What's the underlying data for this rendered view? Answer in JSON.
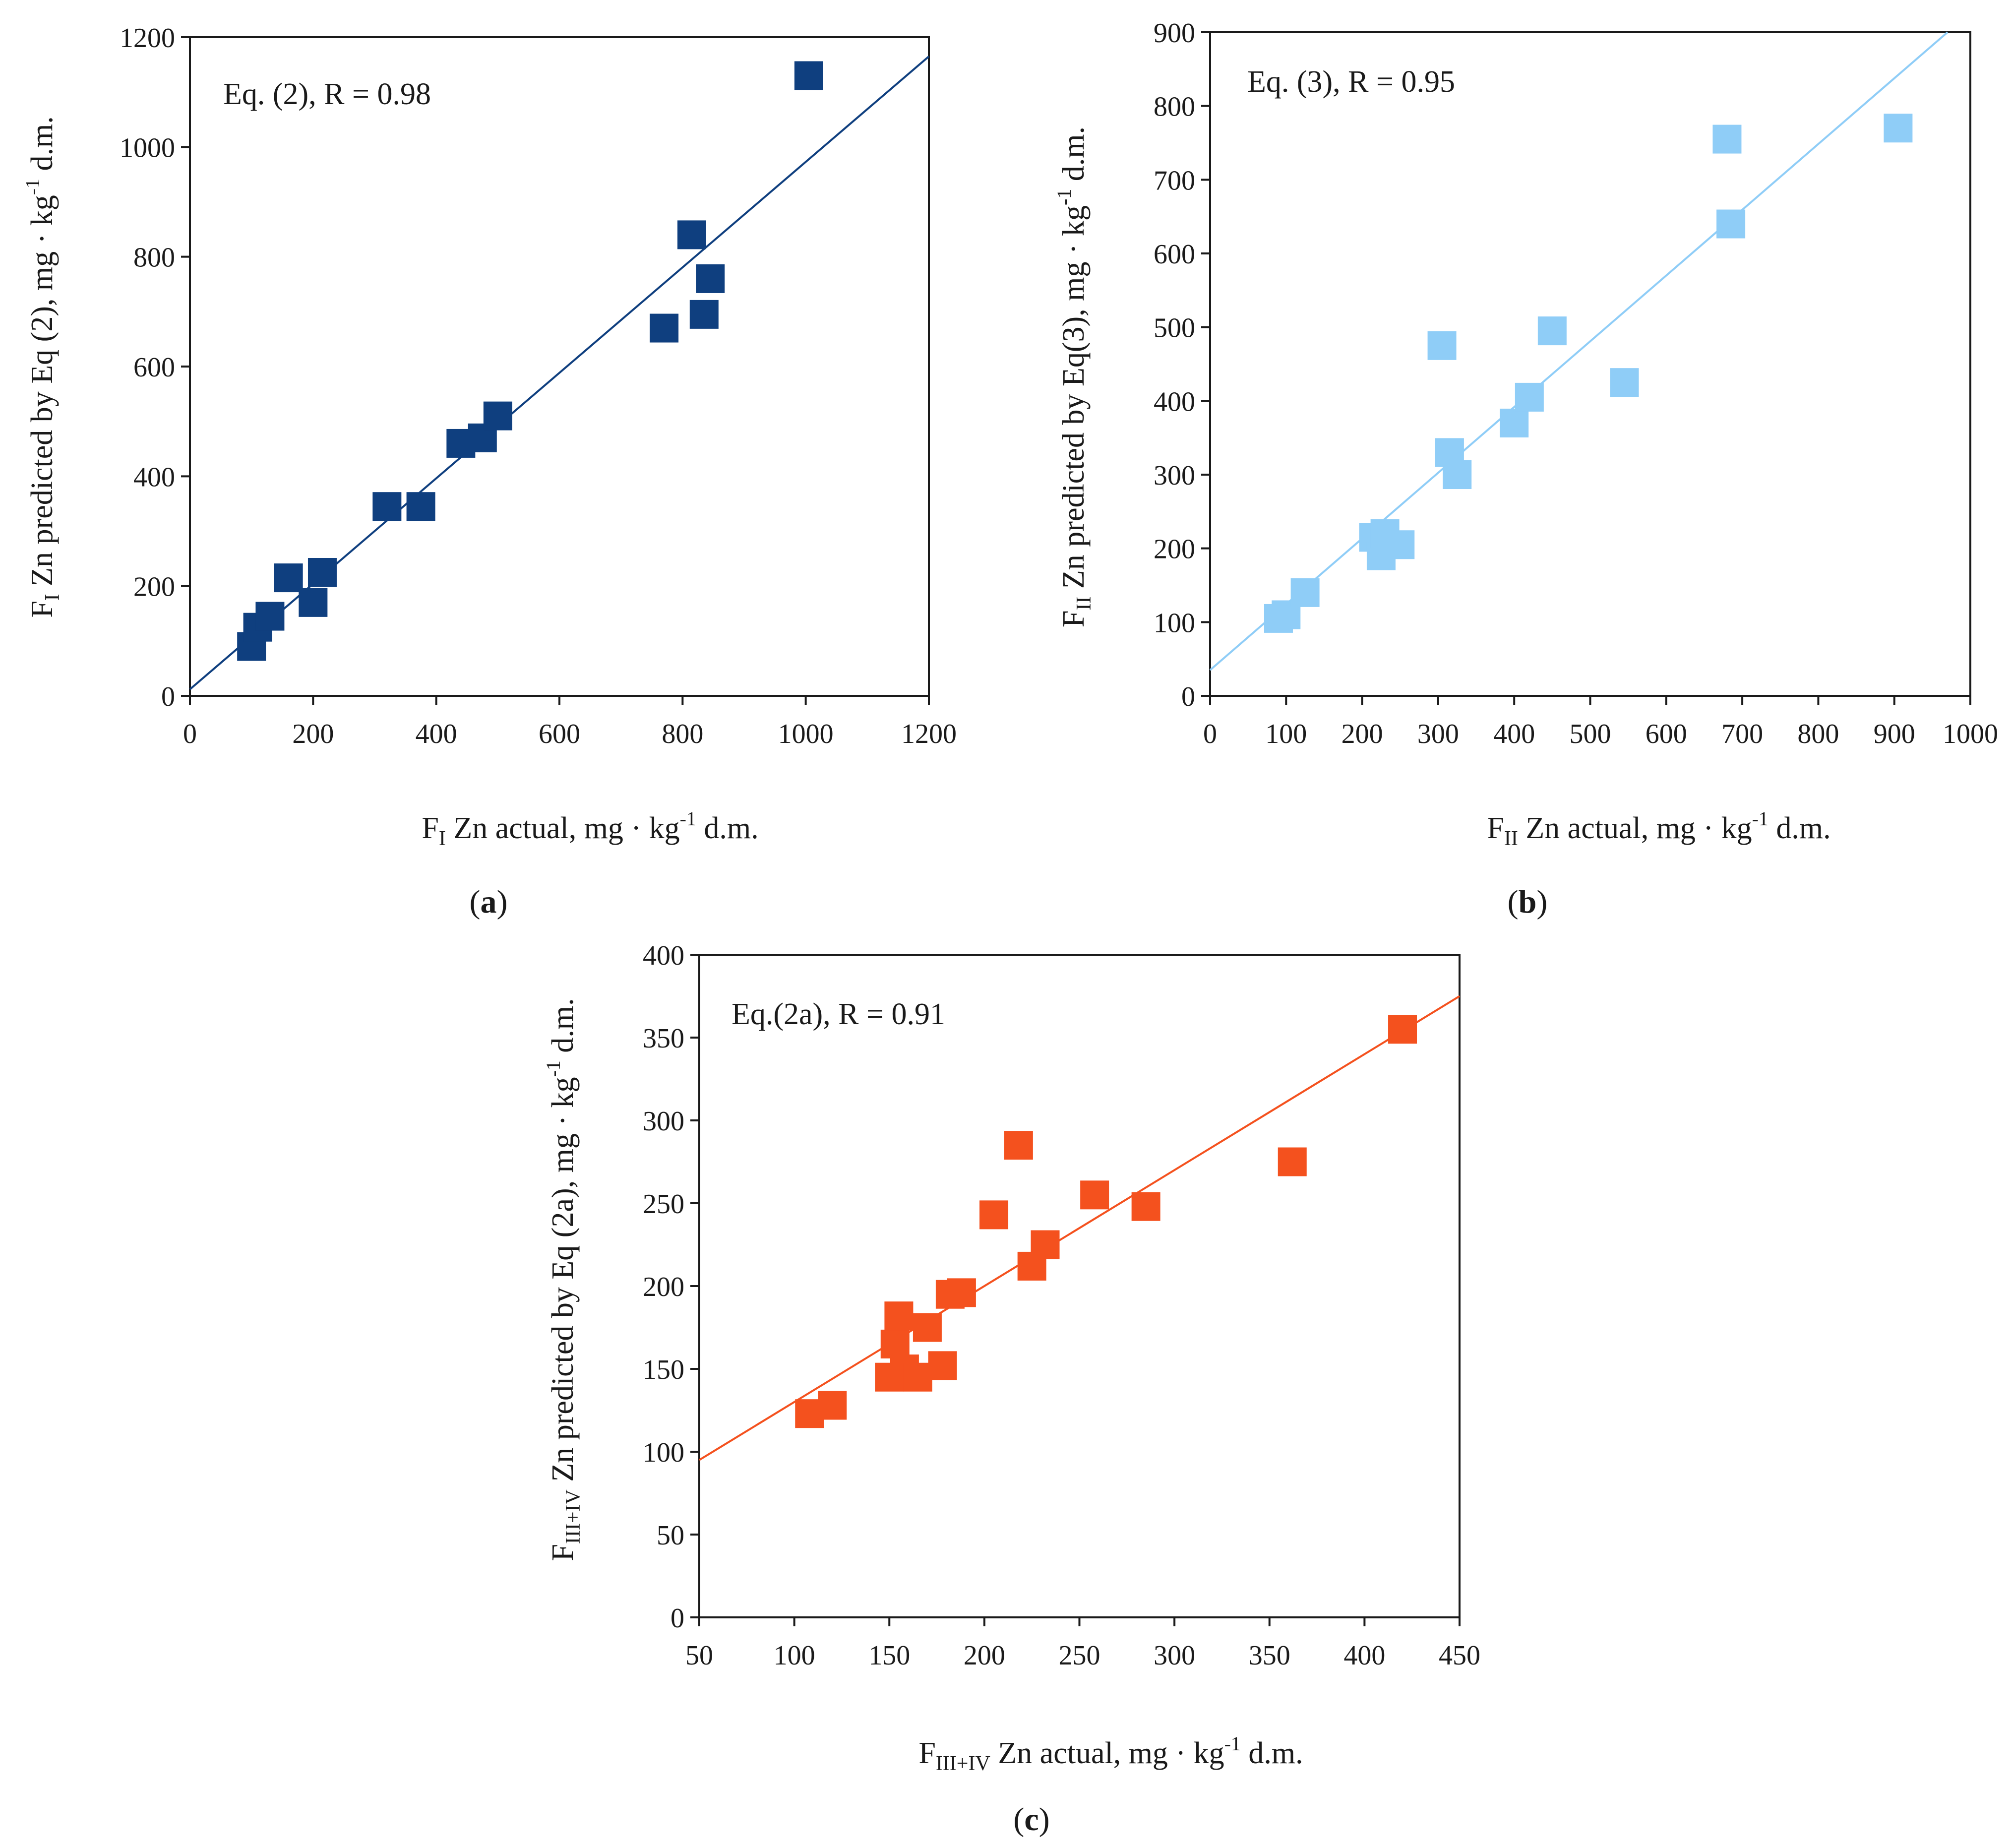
{
  "chart_data": [
    {
      "type": "scatter",
      "panel_label": "a",
      "annotation": "Eq. (2), R = 0.98",
      "xlabel": {
        "main": "F",
        "sub": "I",
        "rest": " Zn actual,  mg · kg",
        "sup": "-1",
        "tail": " d.m."
      },
      "ylabel": {
        "main": "F",
        "sub": "I",
        "rest": " Zn predicted by Eq (2),  mg · kg",
        "sup": "-1",
        "tail": " d.m."
      },
      "xlim": [
        0,
        1200
      ],
      "ylim": [
        0,
        1200
      ],
      "xticks": [
        "0",
        "200",
        "400",
        "600",
        "800",
        "1000",
        "1200"
      ],
      "yticks": [
        "0",
        "200",
        "400",
        "600",
        "800",
        "1000",
        "1200"
      ],
      "color": "#0f3f7f",
      "fit_line": [
        [
          0,
          12
        ],
        [
          1200,
          1165
        ]
      ],
      "x": [
        100,
        110,
        130,
        160,
        200,
        215,
        320,
        375,
        440,
        475,
        500,
        770,
        815,
        835,
        845,
        1005
      ],
      "y": [
        90,
        125,
        145,
        215,
        170,
        225,
        345,
        345,
        460,
        470,
        510,
        670,
        840,
        695,
        760,
        1130
      ]
    },
    {
      "type": "scatter",
      "panel_label": "b",
      "annotation": "Eq. (3), R = 0.95",
      "xlabel": {
        "main": "F",
        "sub": "II",
        "rest": " Zn actual, mg · kg",
        "sup": "-1",
        "tail": " d.m."
      },
      "ylabel": {
        "main": "F",
        "sub": "II",
        "rest": " Zn predicted by Eq(3),  mg · kg",
        "sup": "-1",
        "tail": " d.m."
      },
      "xlim": [
        0,
        1000
      ],
      "ylim": [
        0,
        900
      ],
      "xticks": [
        "0",
        "100",
        "200",
        "300",
        "400",
        "500",
        "600",
        "700",
        "800",
        "900",
        "1000"
      ],
      "yticks": [
        "0",
        "100",
        "200",
        "300",
        "400",
        "500",
        "600",
        "700",
        "800",
        "900"
      ],
      "color": "#8fcdf7",
      "fit_line": [
        [
          0,
          35
        ],
        [
          970,
          900
        ]
      ],
      "x": [
        90,
        100,
        125,
        215,
        225,
        230,
        250,
        305,
        315,
        325,
        400,
        420,
        450,
        545,
        680,
        685,
        905
      ],
      "y": [
        105,
        110,
        140,
        215,
        190,
        220,
        205,
        475,
        330,
        300,
        370,
        405,
        495,
        425,
        755,
        640,
        770
      ]
    },
    {
      "type": "scatter",
      "panel_label": "c",
      "annotation": "Eq.(2a), R = 0.91",
      "xlabel": {
        "main": "F",
        "sub": "III+IV",
        "rest": " Zn actual,  mg · kg",
        "sup": "-1",
        "tail": " d.m."
      },
      "ylabel": {
        "main": "F",
        "sub": "III+IV",
        "rest": " Zn predicted by Eq (2a),  mg · kg",
        "sup": "-1",
        "tail": " d.m."
      },
      "xlim": [
        50,
        450
      ],
      "ylim": [
        0,
        400
      ],
      "xticks": [
        "50",
        "100",
        "150",
        "200",
        "250",
        "300",
        "350",
        "400",
        "450"
      ],
      "yticks": [
        "0",
        "50",
        "100",
        "150",
        "200",
        "250",
        "300",
        "350",
        "400"
      ],
      "color": "#f4511e",
      "fit_line": [
        [
          50,
          95
        ],
        [
          450,
          375
        ]
      ],
      "x": [
        108,
        120,
        150,
        153,
        155,
        158,
        165,
        170,
        178,
        182,
        188,
        205,
        218,
        225,
        232,
        258,
        285,
        362,
        420
      ],
      "y": [
        123,
        128,
        145,
        165,
        182,
        150,
        145,
        175,
        152,
        195,
        196,
        243,
        285,
        212,
        225,
        255,
        248,
        275,
        355
      ]
    }
  ]
}
